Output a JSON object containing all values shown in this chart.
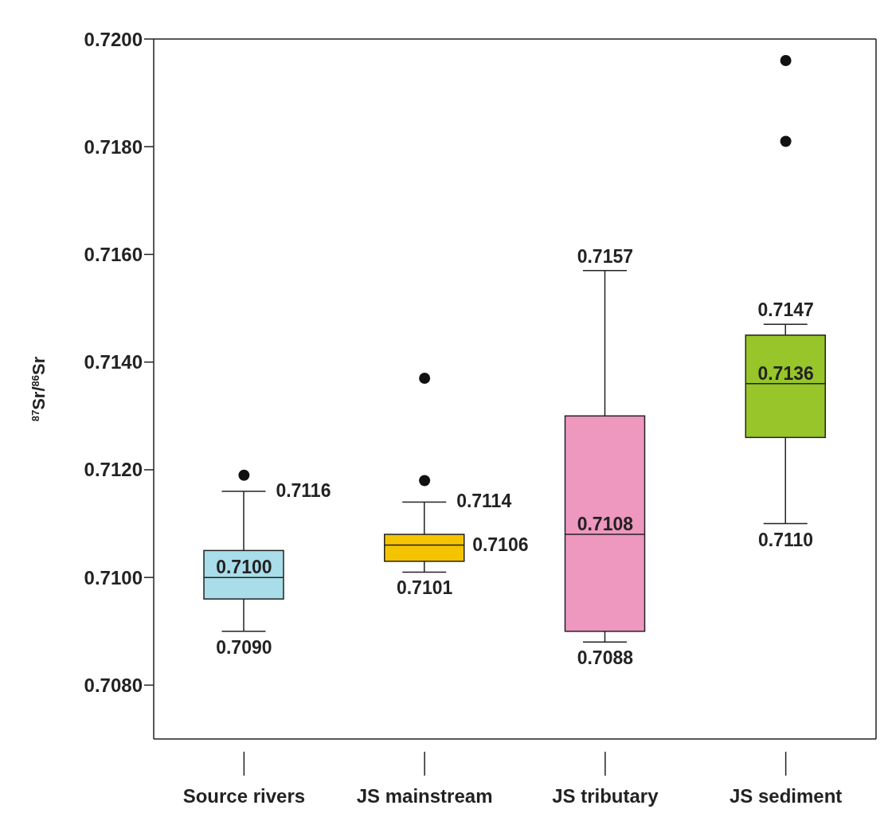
{
  "chart_data": {
    "type": "box",
    "ylabel": "$^{87}$Sr/$^{86}$Sr",
    "categories": [
      "Source rivers",
      "JS mainstream",
      "JS tributary",
      "JS sediment"
    ],
    "colors": [
      "#a8dde9",
      "#f5c400",
      "#ee97bf",
      "#97c52a"
    ],
    "boxes": [
      {
        "low": 0.709,
        "q1": 0.7096,
        "median": 0.71,
        "q3": 0.7105,
        "high": 0.7116,
        "outliers": [
          0.7119
        ]
      },
      {
        "low": 0.7101,
        "q1": 0.7103,
        "median": 0.7106,
        "q3": 0.7108,
        "high": 0.7114,
        "outliers": [
          0.7118,
          0.7137
        ]
      },
      {
        "low": 0.7088,
        "q1": 0.709,
        "median": 0.7108,
        "q3": 0.713,
        "high": 0.7157
      },
      {
        "low": 0.711,
        "q1": 0.7126,
        "median": 0.7136,
        "q3": 0.7145,
        "high": 0.7147,
        "outliers": [
          0.7181,
          0.7196
        ]
      }
    ],
    "ylim": [
      0.707,
      0.72
    ],
    "yticks": [
      {
        "value": 0.708,
        "label": "0.7080"
      },
      {
        "value": 0.71,
        "label": "0.7100"
      },
      {
        "value": 0.712,
        "label": "0.7120"
      },
      {
        "value": 0.714,
        "label": "0.7140"
      },
      {
        "value": 0.716,
        "label": "0.7160"
      },
      {
        "value": 0.718,
        "label": "0.7180"
      },
      {
        "value": 0.72,
        "label": "0.7200"
      }
    ],
    "annotations": [
      {
        "text": "0.7116",
        "x": "Source rivers",
        "y": 0.7116
      },
      {
        "text": "0.7100",
        "x": "Source rivers",
        "y": 0.71
      },
      {
        "text": "0.7090",
        "x": "Source rivers",
        "y": 0.709
      },
      {
        "text": "0.7114",
        "x": "JS mainstream",
        "y": 0.7114
      },
      {
        "text": "0.7106",
        "x": "JS mainstream",
        "y": 0.7106
      },
      {
        "text": "0.7101",
        "x": "JS mainstream",
        "y": 0.7101
      },
      {
        "text": "0.7157",
        "x": "JS tributary",
        "y": 0.7157
      },
      {
        "text": "0.7108",
        "x": "JS tributary",
        "y": 0.7108
      },
      {
        "text": "0.7088",
        "x": "JS tributary",
        "y": 0.7088
      },
      {
        "text": "0.7147",
        "x": "JS sediment",
        "y": 0.7147
      },
      {
        "text": "0.7136",
        "x": "JS sediment",
        "y": 0.7136
      },
      {
        "text": "0.7110",
        "x": "JS sediment",
        "y": 0.711
      }
    ]
  }
}
